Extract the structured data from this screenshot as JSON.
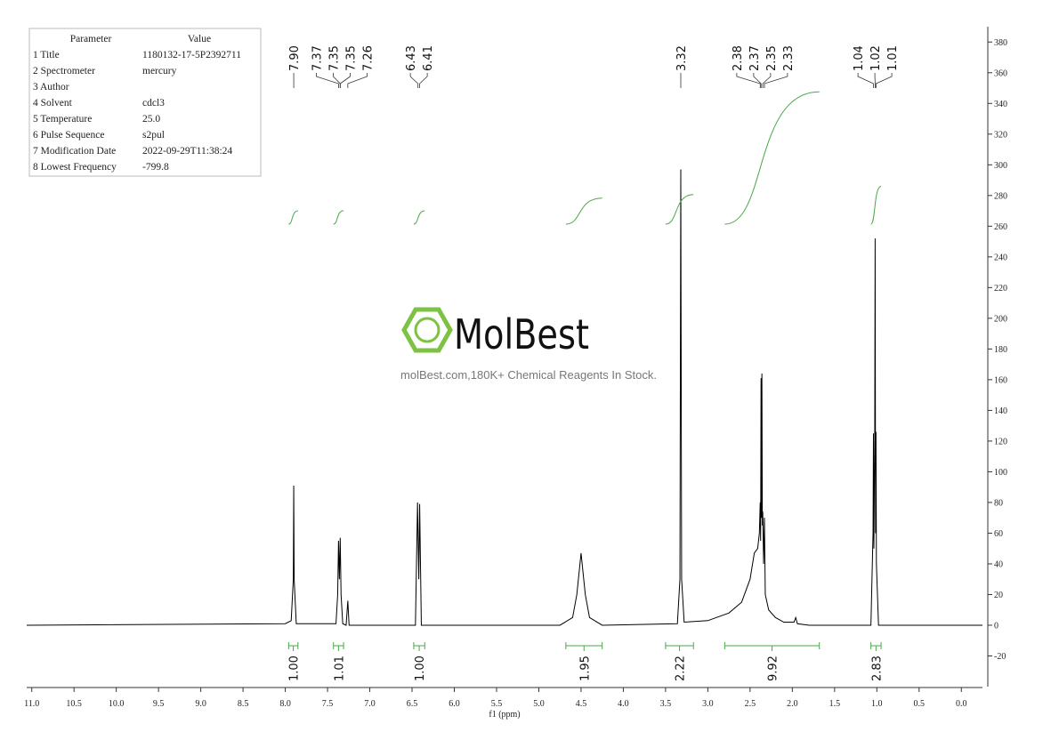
{
  "chart_data": {
    "type": "line",
    "x": [
      11.06,
      8.0,
      7.93,
      7.905,
      7.9,
      7.895,
      7.87,
      7.4,
      7.38,
      7.37,
      7.36,
      7.35,
      7.34,
      7.32,
      7.28,
      7.26,
      7.245,
      6.46,
      6.435,
      6.42,
      6.41,
      6.39,
      4.75,
      4.6,
      4.55,
      4.5,
      4.45,
      4.4,
      4.25,
      3.36,
      3.33,
      3.32,
      3.31,
      3.28,
      3.0,
      2.75,
      2.6,
      2.5,
      2.45,
      2.41,
      2.39,
      2.38,
      2.375,
      2.37,
      2.365,
      2.36,
      2.355,
      2.35,
      2.34,
      2.33,
      2.32,
      2.28,
      2.2,
      2.1,
      1.98,
      1.96,
      1.94,
      1.8,
      1.07,
      1.045,
      1.04,
      1.035,
      1.025,
      1.02,
      1.015,
      1.01,
      1.005,
      0.98,
      -0.25
    ],
    "values": [
      0,
      1,
      3,
      30,
      91,
      30,
      1,
      1,
      20,
      55,
      30,
      57,
      20,
      1,
      0,
      16,
      0,
      0,
      80,
      30,
      79,
      0,
      0,
      5,
      20,
      47,
      20,
      5,
      0,
      1,
      30,
      297,
      30,
      2,
      3,
      8,
      15,
      30,
      47,
      50,
      60,
      80,
      55,
      161,
      70,
      164,
      65,
      74,
      40,
      70,
      20,
      10,
      5,
      2,
      2,
      5,
      1,
      0,
      0,
      60,
      125,
      50,
      120,
      252,
      60,
      126,
      40,
      0,
      0
    ],
    "color": "#000000",
    "x_label": "f1 (ppm)",
    "xlim": [
      11.06,
      -0.25
    ],
    "xticks": [
      {
        "value": 11.0,
        "label": "11.0"
      },
      {
        "value": 10.5,
        "label": "10.5"
      },
      {
        "value": 10.0,
        "label": "10.0"
      },
      {
        "value": 9.5,
        "label": "9.5"
      },
      {
        "value": 9.0,
        "label": "9.0"
      },
      {
        "value": 8.5,
        "label": "8.5"
      },
      {
        "value": 8.0,
        "label": "8.0"
      },
      {
        "value": 7.5,
        "label": "7.5"
      },
      {
        "value": 7.0,
        "label": "7.0"
      },
      {
        "value": 6.5,
        "label": "6.5"
      },
      {
        "value": 6.0,
        "label": "6.0"
      },
      {
        "value": 5.5,
        "label": "5.5"
      },
      {
        "value": 5.0,
        "label": "5.0"
      },
      {
        "value": 4.5,
        "label": "4.5"
      },
      {
        "value": 4.0,
        "label": "4.0"
      },
      {
        "value": 3.5,
        "label": "3.5"
      },
      {
        "value": 3.0,
        "label": "3.0"
      },
      {
        "value": 2.5,
        "label": "2.5"
      },
      {
        "value": 2.0,
        "label": "2.0"
      },
      {
        "value": 1.5,
        "label": "1.5"
      },
      {
        "value": 1.0,
        "label": "1.0"
      },
      {
        "value": 0.5,
        "label": "0.5"
      },
      {
        "value": 0.0,
        "label": "0.0"
      }
    ],
    "ylim": [
      -40,
      390
    ],
    "yticks": [
      -20,
      0,
      20,
      40,
      60,
      80,
      100,
      120,
      140,
      160,
      180,
      200,
      220,
      240,
      260,
      280,
      300,
      320,
      340,
      360,
      380
    ],
    "peak_label_groups": [
      [
        "7.90"
      ],
      [
        "7.37",
        "7.35",
        "7.35",
        "7.26"
      ],
      [
        "6.43",
        "6.41"
      ],
      [
        "3.32"
      ],
      [
        "2.38",
        "2.37",
        "2.35",
        "2.33"
      ],
      [
        "1.04",
        "1.02",
        "1.01"
      ]
    ],
    "integral_color": "#4aa84a",
    "integrals": [
      {
        "from": 7.96,
        "to": 7.85,
        "label": "1.00"
      },
      {
        "from": 7.43,
        "to": 7.31,
        "label": "1.01"
      },
      {
        "from": 6.48,
        "to": 6.35,
        "label": "1.00"
      },
      {
        "from": 4.68,
        "to": 4.25,
        "label": "1.95"
      },
      {
        "from": 3.5,
        "to": 3.17,
        "label": "2.22"
      },
      {
        "from": 2.8,
        "to": 1.68,
        "label": "9.92"
      },
      {
        "from": 1.07,
        "to": 0.95,
        "label": "2.83"
      }
    ]
  },
  "parameters": {
    "header": [
      "Parameter",
      "Value"
    ],
    "rows": [
      [
        "1 Title",
        "1180132-17-5P2392711"
      ],
      [
        "2 Spectrometer",
        "mercury"
      ],
      [
        "3 Author"
      ],
      [
        "4 Solvent",
        "cdcl3"
      ],
      [
        "5 Temperature",
        "25.0"
      ],
      [
        "6 Pulse Sequence",
        "s2pul"
      ],
      [
        "7 Modification Date",
        "2022-09-29T11:38:24"
      ],
      [
        "8 Lowest Frequency",
        "-799.8"
      ]
    ]
  },
  "watermark": {
    "brand": "MolBest",
    "tagline": "molBest.com,180K+ Chemical Reagents In Stock."
  }
}
